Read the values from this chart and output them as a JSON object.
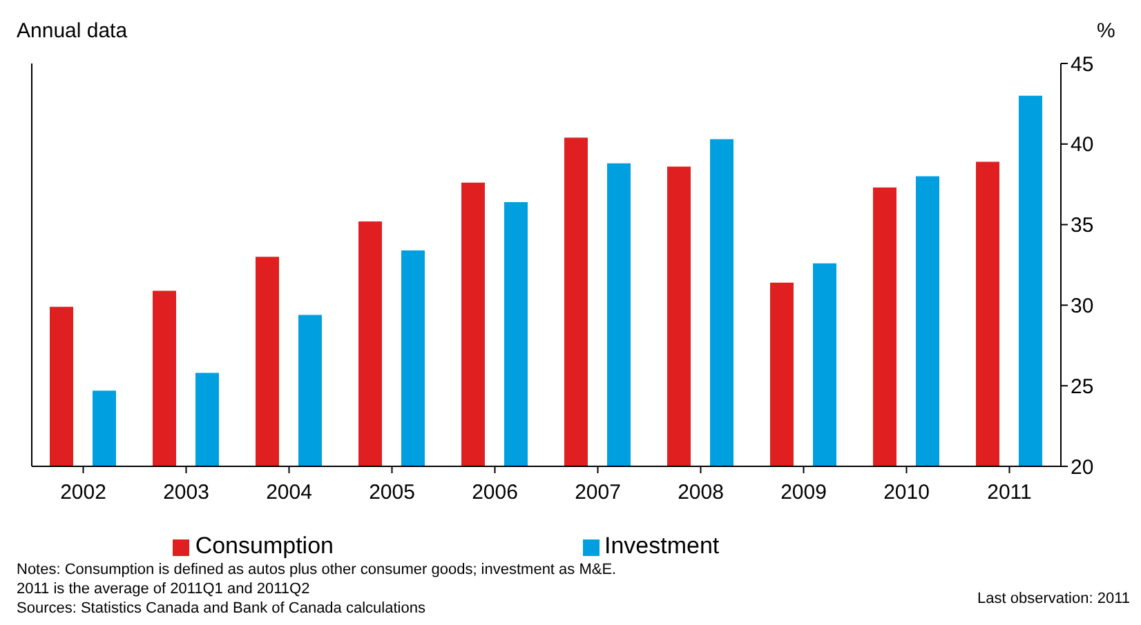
{
  "chart_data": {
    "type": "bar",
    "title": "Annual data",
    "ylabel": "%",
    "categories": [
      "2002",
      "2003",
      "2004",
      "2005",
      "2006",
      "2007",
      "2008",
      "2009",
      "2010",
      "2011"
    ],
    "series": [
      {
        "name": "Consumption",
        "color": "#e02020",
        "values": [
          29.9,
          30.9,
          33.0,
          35.2,
          37.6,
          40.4,
          38.6,
          31.4,
          37.3,
          38.9
        ]
      },
      {
        "name": "Investment",
        "color": "#00a0e0",
        "values": [
          24.7,
          25.8,
          29.4,
          33.4,
          36.4,
          38.8,
          40.3,
          32.6,
          38.0,
          43.0
        ]
      }
    ],
    "ylim": [
      20,
      45
    ],
    "yticks": [
      20,
      25,
      30,
      35,
      40,
      45
    ],
    "legend": "bottom",
    "annotations": [
      "Notes: Consumption is defined as autos plus other consumer goods; investment as M&E.",
      "2011 is the average of 2011Q1 and 2011Q2",
      "Sources: Statistics Canada and Bank of Canada calculations",
      "Last observation: 2011"
    ]
  }
}
